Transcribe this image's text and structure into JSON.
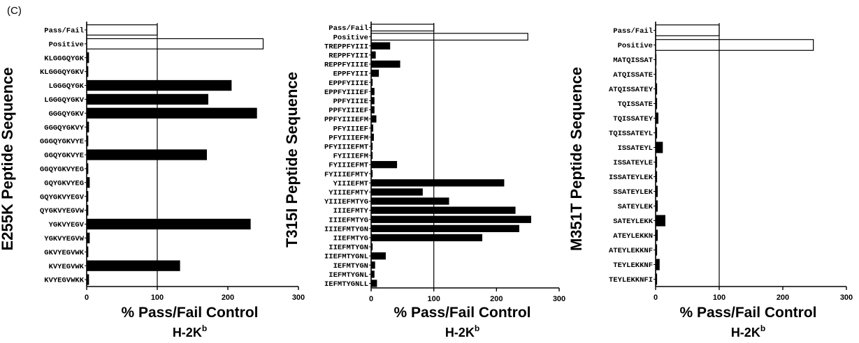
{
  "figure": {
    "panel_label": "(C)"
  },
  "chart_data": [
    {
      "type": "bar",
      "orientation": "horizontal",
      "ylabel": "E255K Peptide Sequence",
      "xlabel": "% Pass/Fail Control",
      "subtitle": "H-2K",
      "subtitle_sup": "b",
      "xlim": [
        0,
        300
      ],
      "xticks": [
        0,
        100,
        200,
        300
      ],
      "reference_line": 100,
      "categories": [
        "Pass/Fail",
        "Positive",
        "KLGGGQYGK",
        "KLGGGQYGKV",
        "LGGGQYGK",
        "LGGGQYGKV",
        "GGGQYGKV",
        "GGGQYGKVY",
        "GGGQYGKVYE",
        "GGQYGKVYE",
        "GGQYGKVYEG",
        "GQYGKVYEG",
        "GQYGKVYEGV",
        "QYGKVYEGVW",
        "YGKVYEGV",
        "YGKVYEGVW",
        "GKVYEGVWK",
        "KVYEGVWK",
        "KVYEGVWKK"
      ],
      "values": [
        100,
        250,
        3,
        2,
        205,
        172,
        241,
        3,
        2,
        170,
        2,
        4,
        2,
        2,
        232,
        4,
        2,
        132,
        3
      ],
      "control_bars": 2,
      "colors": {
        "control": "#ffffff",
        "peptide": "#000000",
        "stroke": "#000000"
      }
    },
    {
      "type": "bar",
      "orientation": "horizontal",
      "ylabel": "T315I Peptide Sequence",
      "xlabel": "% Pass/Fail Control",
      "subtitle": "H-2K",
      "subtitle_sup": "b",
      "xlim": [
        0,
        300
      ],
      "xticks": [
        0,
        100,
        200,
        300
      ],
      "reference_line": 100,
      "categories": [
        "Pass/Fail",
        "Positive",
        "TREPPFYIII",
        "REPPFYIII",
        "REPPFYIIIE",
        "EPPFYIII",
        "EPPFYIIIE",
        "EPPFYIIIEF",
        "PPFYIIIE",
        "PPFYIIIEF",
        "PPFYIIIEFM",
        "PFYIIIEF",
        "PFYIIIEFM",
        "PFYIIIEFMT",
        "FYIIIEFM",
        "FYIIIEFMT",
        "FYIIIEFMTY",
        "YIIIEFMT",
        "YIIIEFMTY",
        "YIIIEFMTYG",
        "IIIEFMTY",
        "IIIEFMTYG",
        "IIIEFMTYGN",
        "IIEFMTYG",
        "IIEFMTYGN",
        "IIEFMTYGNL",
        "IEFMTYGN",
        "IEFMTYGNL",
        "IEFMTYGNLL"
      ],
      "values": [
        100,
        250,
        30,
        7,
        46,
        12,
        2,
        5,
        5,
        5,
        8,
        3,
        4,
        2,
        2,
        41,
        2,
        212,
        82,
        124,
        230,
        255,
        236,
        177,
        2,
        23,
        6,
        5,
        9
      ],
      "control_bars": 2,
      "colors": {
        "control": "#ffffff",
        "peptide": "#000000",
        "stroke": "#000000"
      }
    },
    {
      "type": "bar",
      "orientation": "horizontal",
      "ylabel": "M351T Peptide Sequence",
      "xlabel": "% Pass/Fail Control",
      "subtitle": "H-2K",
      "subtitle_sup": "b",
      "xlim": [
        0,
        300
      ],
      "xticks": [
        0,
        100,
        200,
        300
      ],
      "reference_line": 100,
      "categories": [
        "Pass/Fail",
        "Positive",
        "MATQISSAT",
        "ATQISSATE",
        "ATQISSATEY",
        "TQISSATE",
        "TQISSATEY",
        "TQISSATEYL",
        "ISSATEYL",
        "ISSATEYLE",
        "ISSATEYLEK",
        "SSATEYLEK",
        "SATEYLEK",
        "SATEYLEKK",
        "ATEYLEKKN",
        "ATEYLEKKNF",
        "TEYLEKKNF",
        "TEYLEKKNFI"
      ],
      "values": [
        100,
        248,
        1,
        1,
        2,
        2,
        4,
        2,
        11,
        2,
        2,
        3,
        3,
        15,
        3,
        2,
        6,
        2
      ],
      "control_bars": 2,
      "colors": {
        "control": "#ffffff",
        "peptide": "#000000",
        "stroke": "#000000"
      }
    }
  ]
}
